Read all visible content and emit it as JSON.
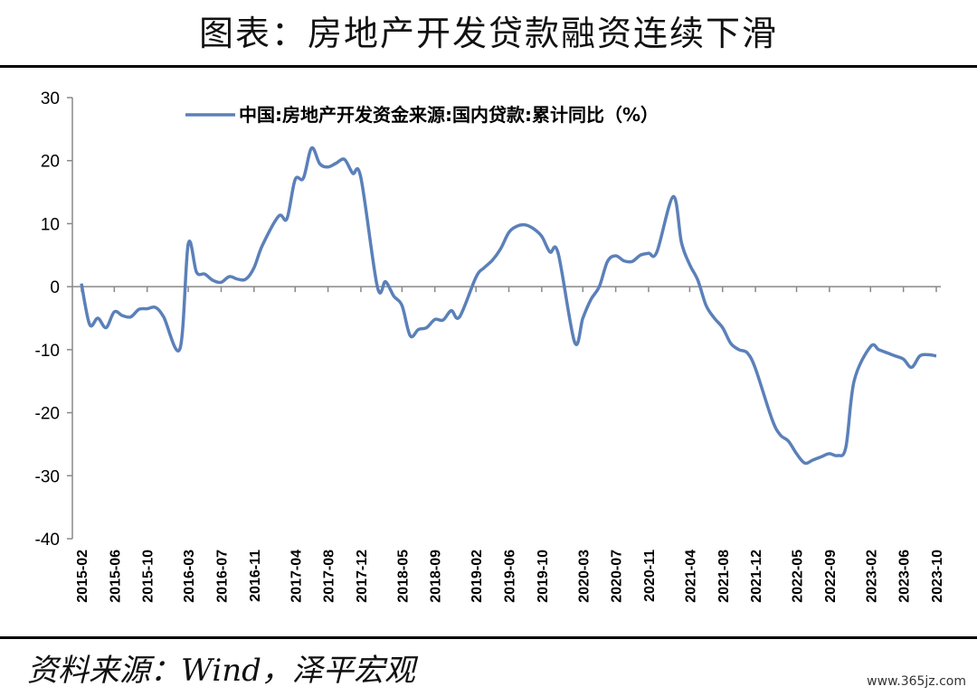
{
  "title": "图表：房地产开发贷款融资连续下滑",
  "source": "资料来源：Wind，泽平宏观",
  "watermark": "www.365jz.com",
  "chart_data": {
    "type": "line",
    "ylim": [
      -40,
      30
    ],
    "yticks": [
      30,
      20,
      10,
      0,
      -10,
      -20,
      -30,
      -40
    ],
    "x_tick_labels": [
      "2015-02",
      "2015-06",
      "2015-10",
      "2016-03",
      "2016-07",
      "2016-11",
      "2017-04",
      "2017-08",
      "2017-12",
      "2018-05",
      "2018-09",
      "2019-02",
      "2019-06",
      "2019-10",
      "2020-03",
      "2020-07",
      "2020-11",
      "2021-04",
      "2021-08",
      "2021-12",
      "2022-05",
      "2022-09",
      "2023-02",
      "2023-06",
      "2023-10"
    ],
    "color": "#5B80B9",
    "series": [
      {
        "name": "中国:房地产开发资金来源:国内贷款:累计同比（%）",
        "x": [
          "2015-02",
          "2015-03",
          "2015-04",
          "2015-05",
          "2015-06",
          "2015-07",
          "2015-08",
          "2015-09",
          "2015-10",
          "2015-11",
          "2015-12",
          "2016-02",
          "2016-03",
          "2016-04",
          "2016-05",
          "2016-06",
          "2016-07",
          "2016-08",
          "2016-09",
          "2016-10",
          "2016-11",
          "2016-12",
          "2017-02",
          "2017-03",
          "2017-04",
          "2017-05",
          "2017-06",
          "2017-07",
          "2017-08",
          "2017-09",
          "2017-10",
          "2017-11",
          "2017-12",
          "2018-02",
          "2018-03",
          "2018-04",
          "2018-05",
          "2018-06",
          "2018-07",
          "2018-08",
          "2018-09",
          "2018-10",
          "2018-11",
          "2018-12",
          "2019-02",
          "2019-03",
          "2019-04",
          "2019-05",
          "2019-06",
          "2019-07",
          "2019-08",
          "2019-09",
          "2019-10",
          "2019-11",
          "2019-12",
          "2020-02",
          "2020-03",
          "2020-04",
          "2020-05",
          "2020-06",
          "2020-07",
          "2020-08",
          "2020-09",
          "2020-10",
          "2020-11",
          "2020-12",
          "2021-02",
          "2021-03",
          "2021-04",
          "2021-05",
          "2021-06",
          "2021-07",
          "2021-08",
          "2021-09",
          "2021-10",
          "2021-11",
          "2021-12",
          "2022-02",
          "2022-03",
          "2022-04",
          "2022-05",
          "2022-06",
          "2022-07",
          "2022-08",
          "2022-09",
          "2022-10",
          "2022-11",
          "2022-12",
          "2023-02",
          "2023-03",
          "2023-04",
          "2023-05",
          "2023-06",
          "2023-07",
          "2023-08",
          "2023-09",
          "2023-10"
        ],
        "values": [
          0.5,
          -6.0,
          -5.0,
          -6.5,
          -4.0,
          -4.6,
          -4.8,
          -3.6,
          -3.5,
          -3.3,
          -4.8,
          -9.8,
          6.8,
          2.3,
          2.0,
          1.0,
          0.7,
          1.6,
          1.2,
          1.2,
          3.0,
          6.5,
          11.2,
          10.8,
          17.0,
          17.2,
          22.0,
          19.5,
          19.0,
          19.6,
          20.2,
          18.0,
          17.3,
          0.0,
          0.8,
          -1.5,
          -3.0,
          -7.8,
          -6.8,
          -6.5,
          -5.2,
          -5.3,
          -3.8,
          -4.8,
          1.5,
          3.0,
          4.2,
          6.0,
          8.6,
          9.6,
          9.8,
          9.2,
          8.0,
          5.5,
          5.3,
          -8.8,
          -5.0,
          -2.0,
          0.0,
          4.0,
          4.9,
          4.1,
          4.0,
          5.0,
          5.3,
          5.5,
          14.3,
          7.0,
          3.5,
          1.0,
          -3.0,
          -5.0,
          -6.5,
          -9.0,
          -10.0,
          -10.5,
          -13.0,
          -21.0,
          -23.5,
          -24.5,
          -26.5,
          -28.0,
          -27.5,
          -27.0,
          -26.5,
          -26.8,
          -25.5,
          -15.0,
          -9.5,
          -10.0,
          -10.5,
          -11.0,
          -11.5,
          -12.8,
          -11.0,
          -10.8,
          -11.0
        ]
      }
    ]
  }
}
